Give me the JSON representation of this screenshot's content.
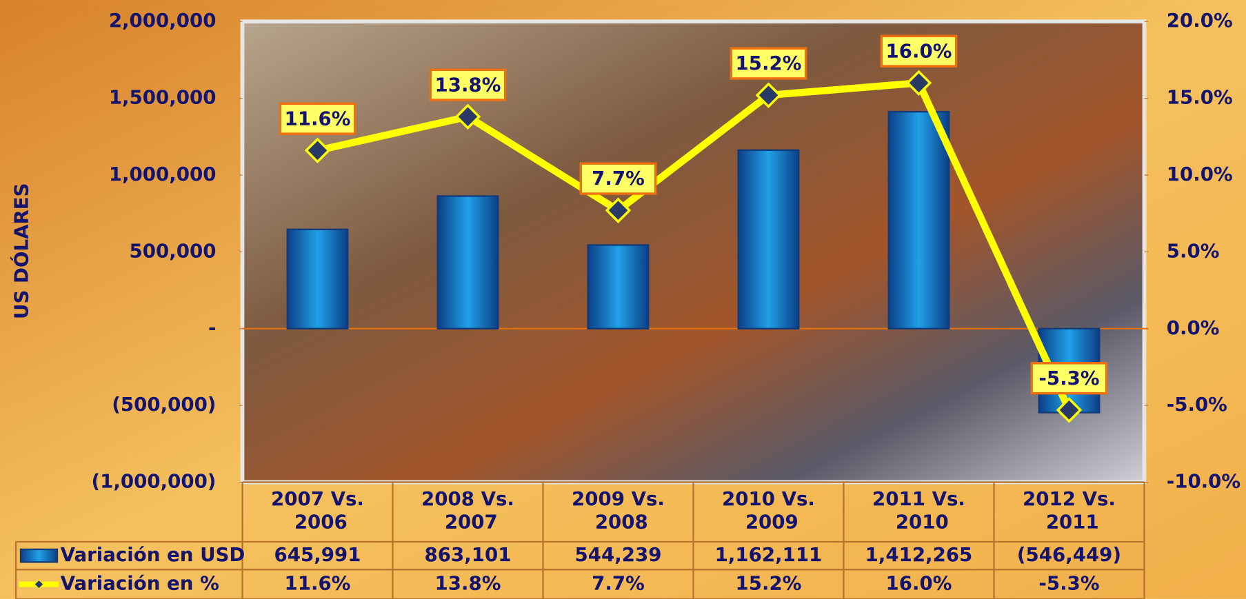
{
  "chart_data": {
    "type": "bar",
    "y_label": "US DÓLARES",
    "categories": [
      "2007 Vs. 2006",
      "2008 Vs. 2007",
      "2009 Vs. 2008",
      "2010 Vs. 2009",
      "2011 Vs. 2010",
      "2012 Vs. 2011"
    ],
    "series": [
      {
        "name": "Variación en USD",
        "type": "bar",
        "color": "#1a7fd0",
        "values": [
          645991,
          863101,
          544239,
          1162111,
          1412265,
          -546449
        ],
        "value_labels": [
          "645,991",
          "863,101",
          "544,239",
          "1,162,111",
          "1,412,265",
          "(546,449)"
        ]
      },
      {
        "name": "Variación en %",
        "type": "line",
        "axis": "y2",
        "color": "#ffff00",
        "values": [
          11.6,
          13.8,
          7.7,
          15.2,
          16.0,
          -5.3
        ],
        "value_labels": [
          "11.6%",
          "13.8%",
          "7.7%",
          "15.2%",
          "16.0%",
          "-5.3%"
        ]
      }
    ],
    "ylim": [
      -1000000,
      2000000
    ],
    "yticks": [
      {
        "value": -1000000,
        "label": "(1,000,000)"
      },
      {
        "value": -500000,
        "label": "(500,000)"
      },
      {
        "value": 0,
        "label": "-"
      },
      {
        "value": 500000,
        "label": "500,000"
      },
      {
        "value": 1000000,
        "label": "1,000,000"
      },
      {
        "value": 1500000,
        "label": "1,500,000"
      },
      {
        "value": 2000000,
        "label": "2,000,000"
      }
    ],
    "y2lim": [
      -10,
      20
    ],
    "y2ticks": [
      {
        "value": -10,
        "label": "-10.0%"
      },
      {
        "value": -5,
        "label": "-5.0%"
      },
      {
        "value": 0,
        "label": "0.0%"
      },
      {
        "value": 5,
        "label": "5.0%"
      },
      {
        "value": 10,
        "label": "10.0%"
      },
      {
        "value": 15,
        "label": "15.0%"
      },
      {
        "value": 20,
        "label": "20.0%"
      }
    ],
    "data_table": true
  }
}
